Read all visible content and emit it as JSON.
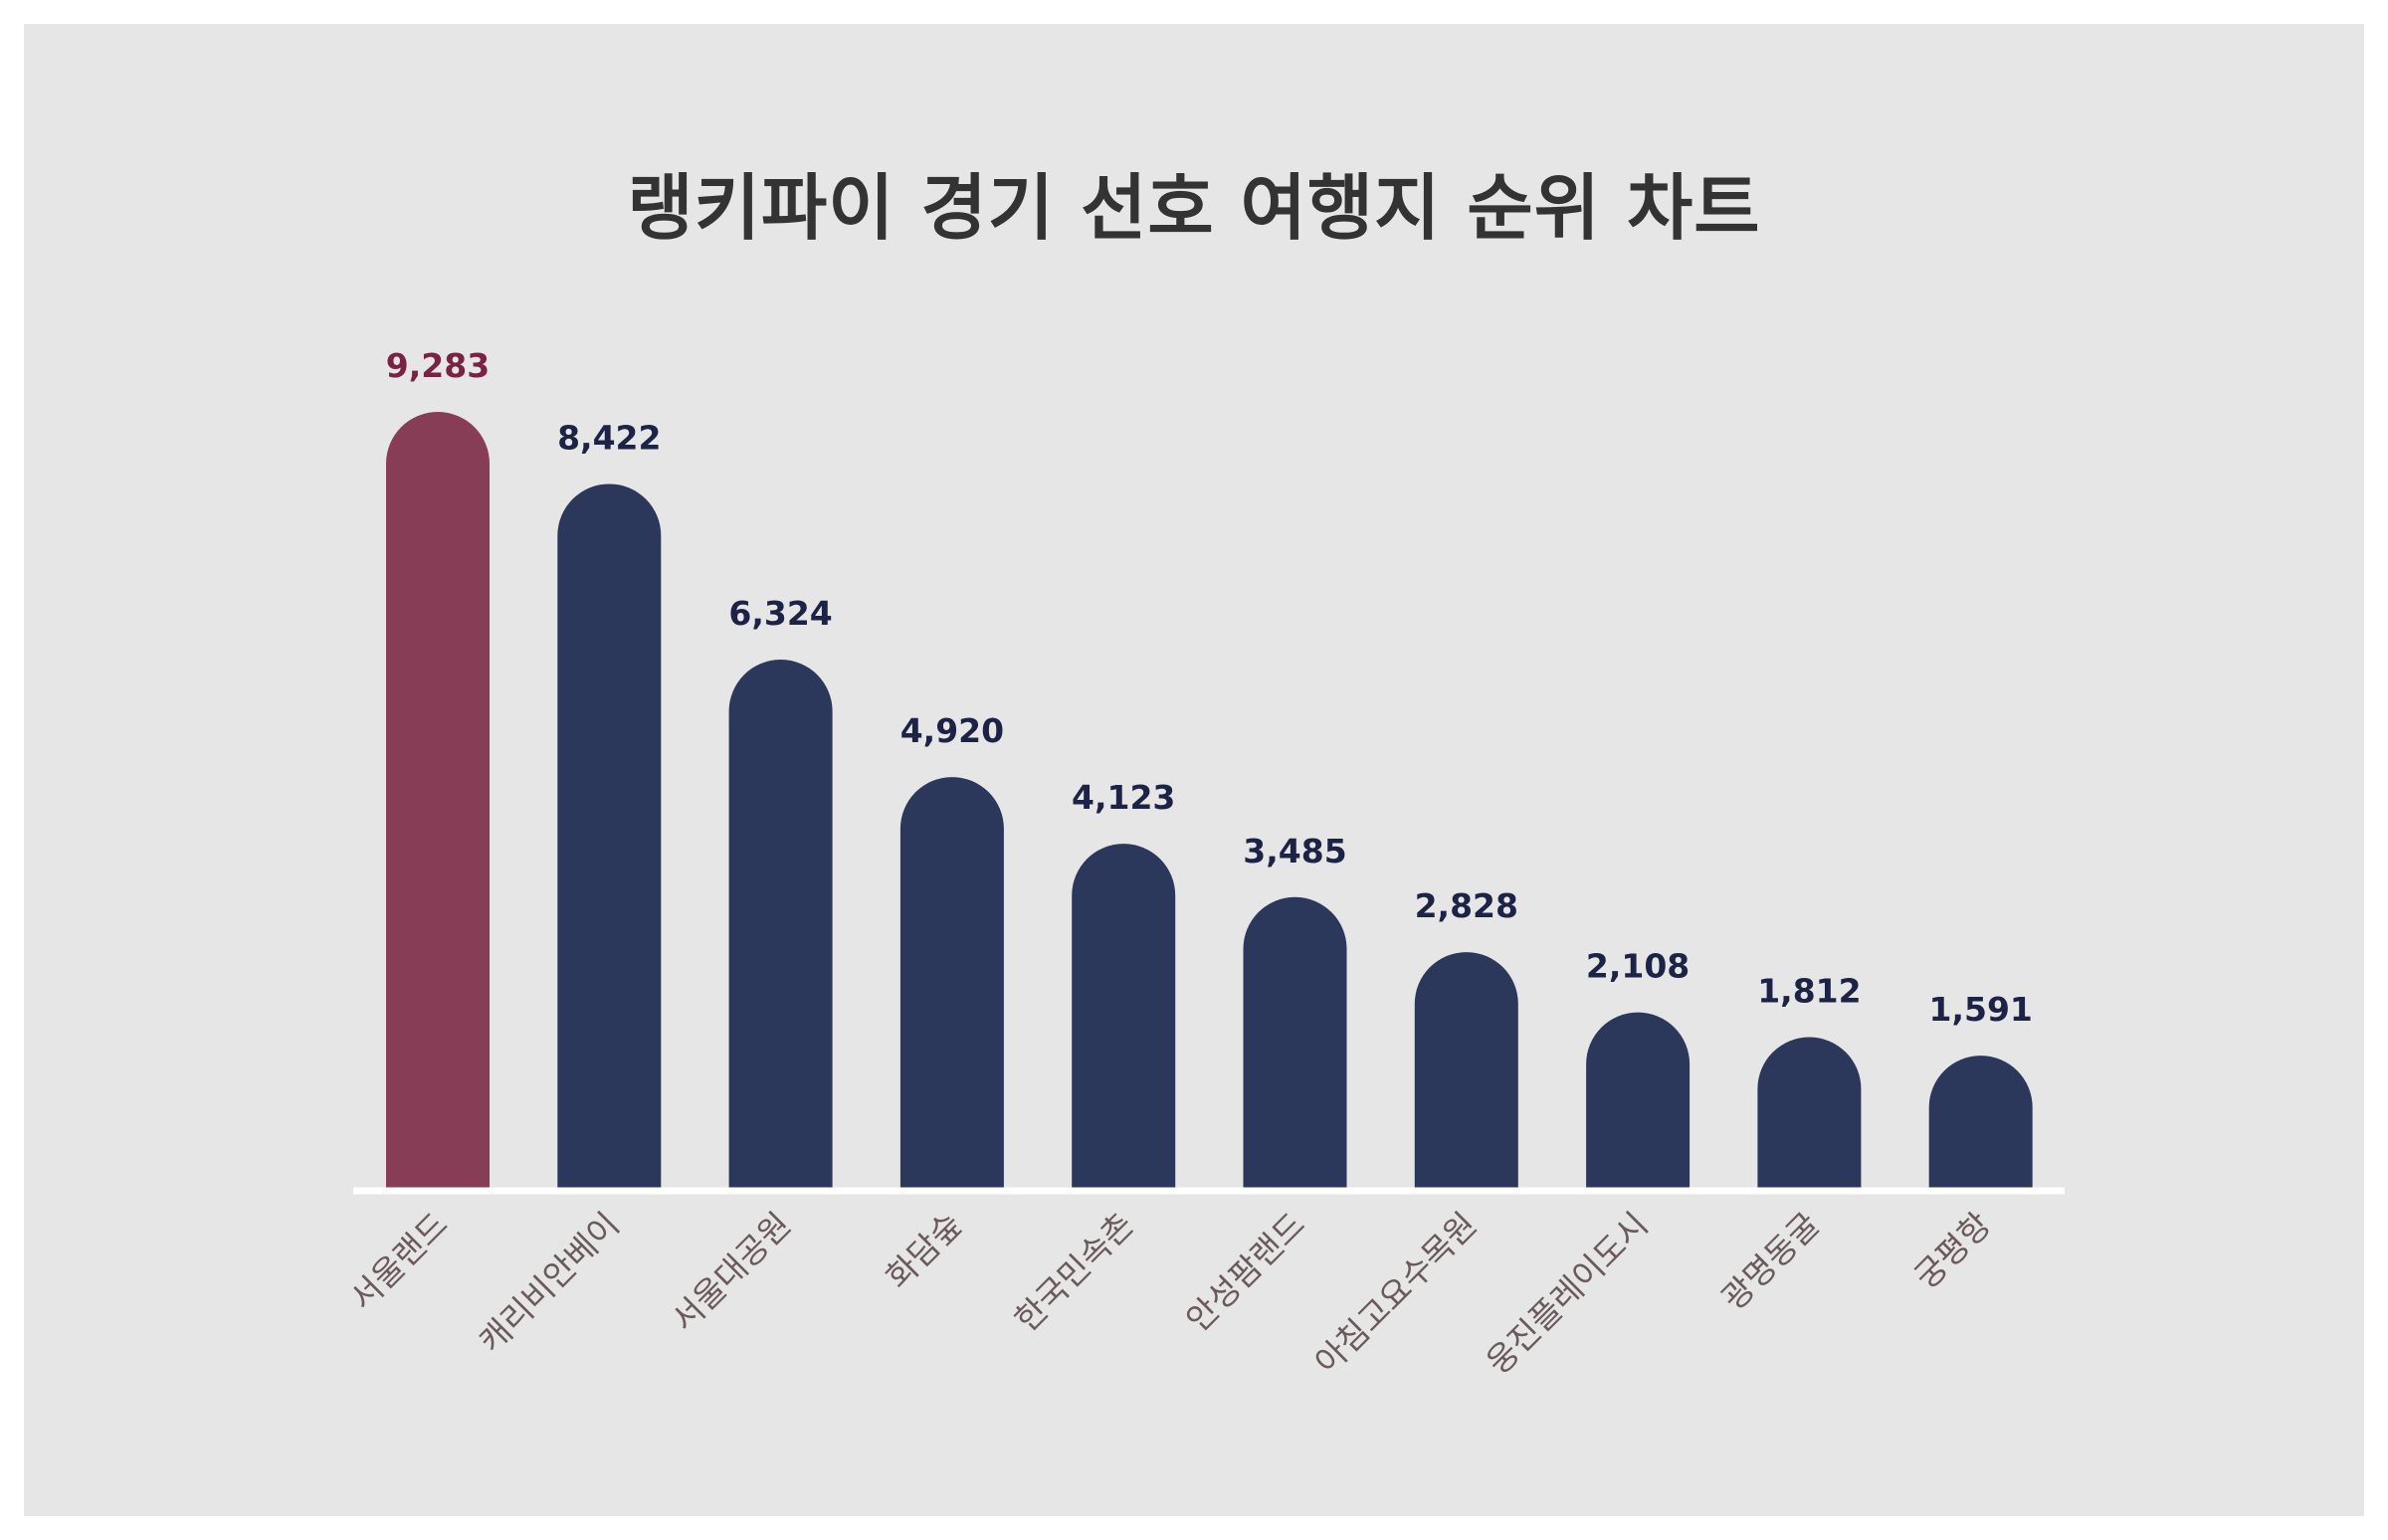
{
  "chart_data": {
    "type": "bar",
    "title": "랭키파이 경기 선호 여행지 순위 차트",
    "categories": [
      "서울랜드",
      "캐리비안베이",
      "서울대공원",
      "화담숲",
      "한국민속촌",
      "안성팜랜드",
      "아침고요수목원",
      "웅진플레이도시",
      "광명동굴",
      "궁평항"
    ],
    "values": [
      9283,
      8422,
      6324,
      4920,
      4123,
      3485,
      2828,
      2108,
      1812,
      1591
    ],
    "value_labels": [
      "9,283",
      "8,422",
      "6,324",
      "4,920",
      "4,123",
      "3,485",
      "2,828",
      "2,108",
      "1,812",
      "1,591"
    ],
    "xlabel": "",
    "ylabel": "",
    "ylim": [
      0,
      9283
    ],
    "grid": false,
    "highlight_index": 0,
    "colors": {
      "highlight_bar": "#873d56",
      "bar": "#2c375c",
      "highlight_label": "#7a2244",
      "label": "#1c2346",
      "category_label": "#6b5a5a",
      "baseline": "#ffffff",
      "background": "#e6e6e6"
    }
  }
}
